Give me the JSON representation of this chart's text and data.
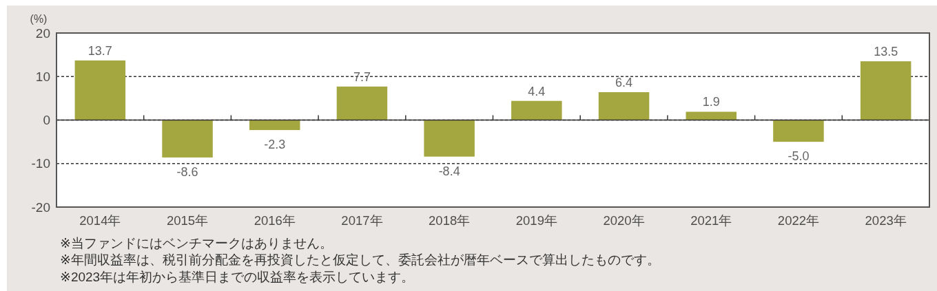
{
  "chart_data": {
    "type": "bar",
    "ylabel": "(%)",
    "categories": [
      "2014年",
      "2015年",
      "2016年",
      "2017年",
      "2018年",
      "2019年",
      "2020年",
      "2021年",
      "2022年",
      "2023年"
    ],
    "values": [
      13.7,
      -8.6,
      -2.3,
      7.7,
      -8.4,
      4.4,
      6.4,
      1.9,
      -5.0,
      13.5
    ],
    "value_labels": [
      "13.7",
      "-8.6",
      "-2.3",
      "7.7",
      "-8.4",
      "4.4",
      "6.4",
      "1.9",
      "-5.0",
      "13.5"
    ],
    "color": "#a4a63f",
    "ylim": [
      -20,
      20
    ],
    "yticks": [
      -20,
      -10,
      0,
      10,
      20
    ],
    "grid": "y",
    "annotations": [
      "※当ファンドにはベンチマークはありません。",
      "※年間収益率は、税引前分配金を再投資したと仮定して、委託会社が暦年ベースで算出したものです。",
      "※2023年は年初から基準日までの収益率を表示しています。"
    ]
  }
}
